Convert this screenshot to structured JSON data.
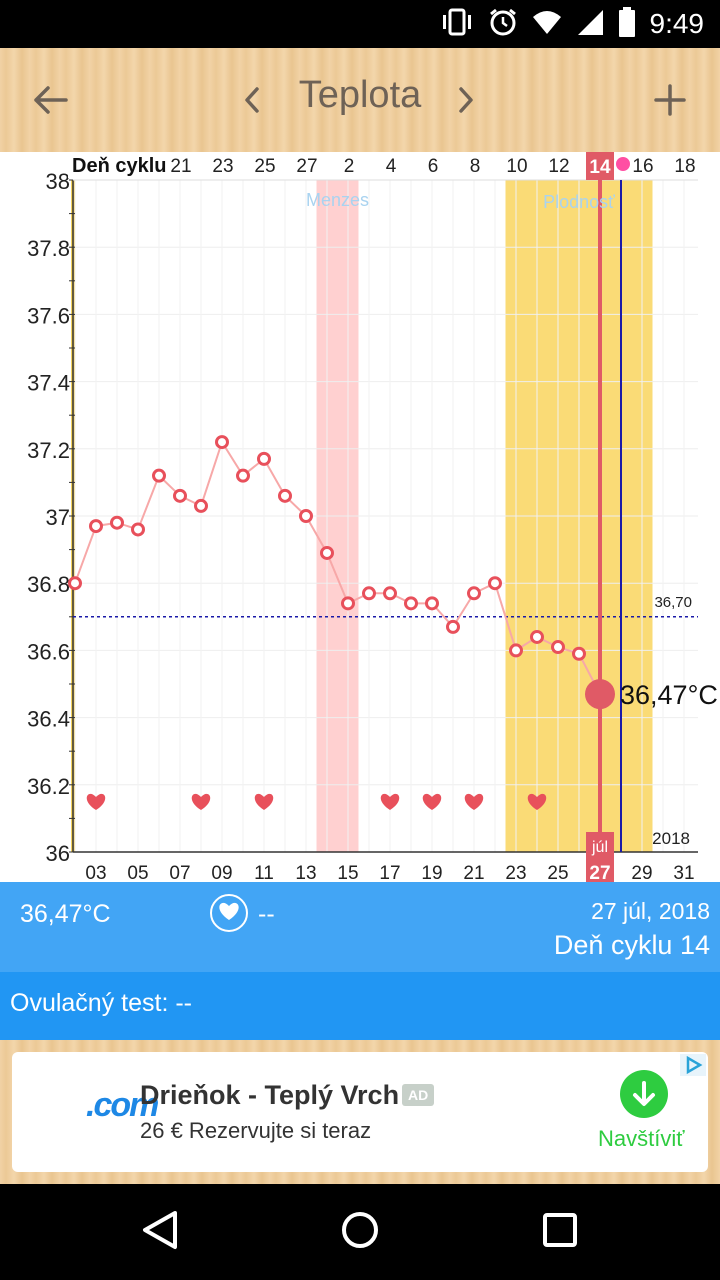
{
  "status_bar": {
    "time": "9:49",
    "icons": [
      "vibrate-icon",
      "alarm-icon",
      "wifi-icon",
      "signal-icon",
      "battery-icon"
    ]
  },
  "app_bar": {
    "title": "Teplota",
    "back_icon": "back-arrow-icon",
    "prev_icon": "chevron-left-icon",
    "next_icon": "chevron-right-icon",
    "add_icon": "plus-icon"
  },
  "chart_data": {
    "type": "line",
    "top_axis_label": "Deň cyklu",
    "cycle_day_ticks": [
      "21",
      "23",
      "25",
      "27",
      "2",
      "4",
      "6",
      "8",
      "10",
      "12",
      "14",
      "16",
      "18"
    ],
    "date_ticks": [
      "03",
      "05",
      "07",
      "09",
      "11",
      "13",
      "15",
      "17",
      "19",
      "21",
      "23",
      "25",
      "27",
      "29",
      "31"
    ],
    "y_ticks": [
      "38",
      "37.8",
      "37.6",
      "37.4",
      "37.2",
      "37",
      "36.8",
      "36.6",
      "36.4",
      "36.2",
      "36"
    ],
    "ylim": [
      36,
      38
    ],
    "x_dates": [
      "2018-07-02",
      "2018-07-03",
      "2018-07-04",
      "2018-07-05",
      "2018-07-06",
      "2018-07-07",
      "2018-07-08",
      "2018-07-09",
      "2018-07-10",
      "2018-07-11",
      "2018-07-12",
      "2018-07-13",
      "2018-07-14",
      "2018-07-15",
      "2018-07-16",
      "2018-07-17",
      "2018-07-18",
      "2018-07-19",
      "2018-07-20",
      "2018-07-21",
      "2018-07-22",
      "2018-07-23",
      "2018-07-24",
      "2018-07-25",
      "2018-07-26",
      "2018-07-27"
    ],
    "temperatures": [
      36.8,
      36.97,
      36.98,
      36.96,
      37.12,
      37.06,
      37.03,
      37.22,
      37.12,
      37.17,
      37.06,
      37.0,
      36.89,
      36.74,
      36.77,
      36.77,
      36.74,
      36.74,
      36.67,
      36.77,
      36.8,
      36.6,
      36.64,
      36.61,
      36.59,
      36.47
    ],
    "heart_dates": [
      "2018-07-03",
      "2018-07-08",
      "2018-07-11",
      "2018-07-17",
      "2018-07-19",
      "2018-07-21",
      "2018-07-24"
    ],
    "menses_label": "Menzes",
    "menses_range": [
      "2018-07-14",
      "2018-07-15"
    ],
    "fertility_label": "Plodnosť",
    "fertility_range": [
      "2018-07-23",
      "2018-07-29"
    ],
    "coverline_value": 36.7,
    "coverline_label": "36,70",
    "selected_date": "2018-07-27",
    "selected_cycle_day": "14",
    "selected_month": "júl",
    "selected_day": "27",
    "selected_temp_label": "36,47°C",
    "ovulation_date": "2018-07-28",
    "year_label": "2018",
    "colors": {
      "line": "#f7a8a8",
      "point": "#e8505b",
      "menses": "#ffd0d0",
      "fertility": "#fadb76",
      "coverline": "#1a1aa8",
      "selected": "#e05a66",
      "ovulation_line": "#1a1aa8"
    }
  },
  "info_panel": {
    "temperature": "36,47°C",
    "intercourse_value": "--",
    "date": "27 júl, 2018",
    "cycle_day": "Deň cyklu 14"
  },
  "ovulation_test": {
    "text": "Ovulačný test: --"
  },
  "ad": {
    "logo_text": ".com",
    "title": "Drieňok - Teplý Vrch",
    "badge": "AD",
    "subtitle": "26 € Rezervujte si teraz",
    "cta": "Navštíviť"
  },
  "nav_bar": {
    "back": "back-triangle-icon",
    "home": "home-circle-icon",
    "recents": "recents-square-icon"
  }
}
